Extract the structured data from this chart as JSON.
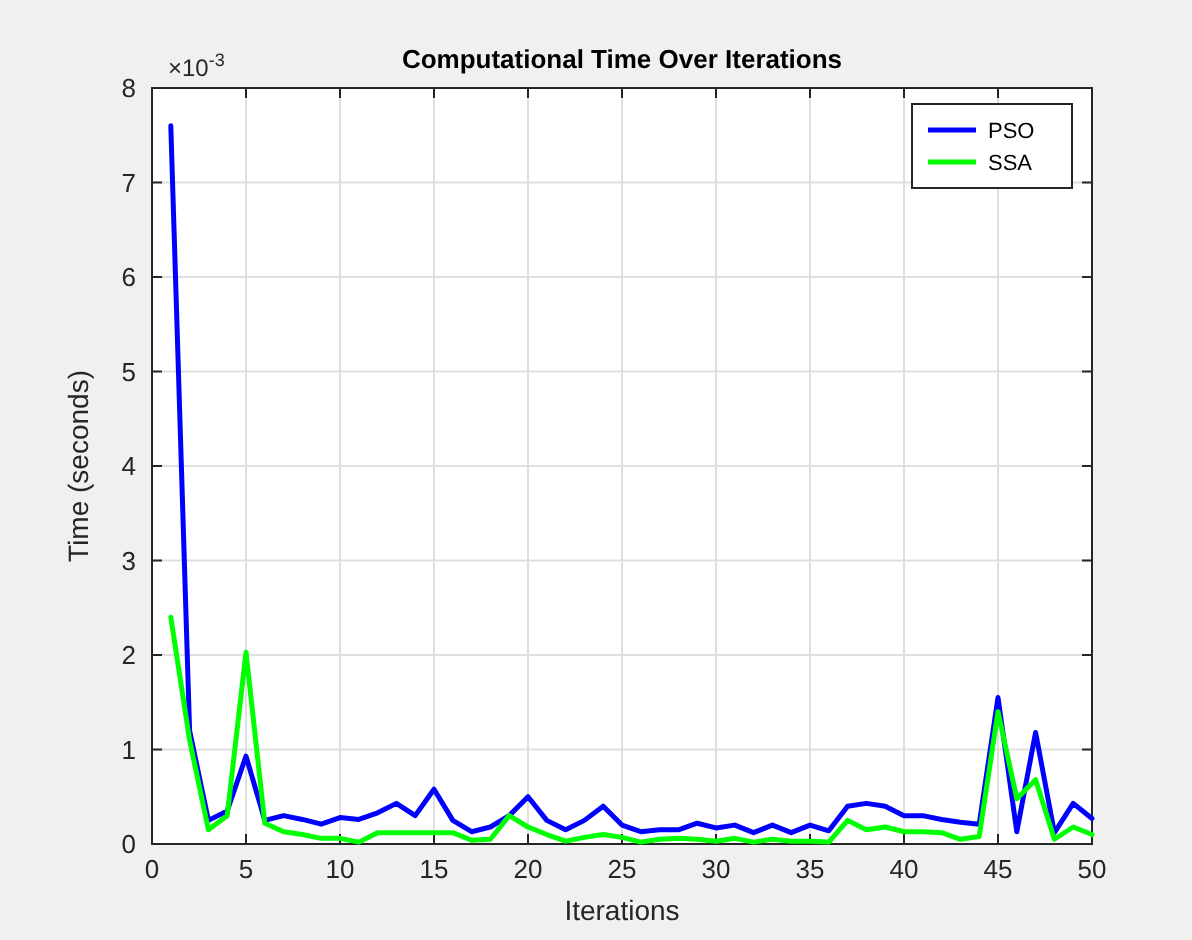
{
  "chart_data": {
    "type": "line",
    "title": "Computational Time Over Iterations",
    "xlabel": "Iterations",
    "ylabel": "Time (seconds)",
    "annotations": [
      "×10$^{-3}$"
    ],
    "x": [
      1,
      2,
      3,
      4,
      5,
      6,
      7,
      8,
      9,
      10,
      11,
      12,
      13,
      14,
      15,
      16,
      17,
      18,
      19,
      20,
      21,
      22,
      23,
      24,
      25,
      26,
      27,
      28,
      29,
      30,
      31,
      32,
      33,
      34,
      35,
      36,
      37,
      38,
      39,
      40,
      41,
      42,
      43,
      44,
      45,
      46,
      47,
      48,
      49,
      50
    ],
    "series": [
      {
        "name": "PSO",
        "color": "#0000ff",
        "values": [
          7.6,
          1.2,
          0.25,
          0.35,
          0.93,
          0.25,
          0.3,
          0.26,
          0.21,
          0.28,
          0.26,
          0.33,
          0.43,
          0.3,
          0.58,
          0.25,
          0.13,
          0.18,
          0.3,
          0.5,
          0.25,
          0.15,
          0.25,
          0.4,
          0.2,
          0.13,
          0.15,
          0.15,
          0.22,
          0.17,
          0.2,
          0.12,
          0.2,
          0.12,
          0.2,
          0.14,
          0.4,
          0.43,
          0.4,
          0.3,
          0.3,
          0.26,
          0.23,
          0.21,
          1.55,
          0.13,
          1.18,
          0.12,
          0.43,
          0.27
        ]
      },
      {
        "name": "SSA",
        "color": "#00ff00",
        "values": [
          2.4,
          1.1,
          0.15,
          0.3,
          2.03,
          0.22,
          0.13,
          0.1,
          0.06,
          0.06,
          0.02,
          0.12,
          0.12,
          0.12,
          0.12,
          0.12,
          0.04,
          0.05,
          0.3,
          0.18,
          0.1,
          0.03,
          0.07,
          0.1,
          0.07,
          0.02,
          0.05,
          0.06,
          0.05,
          0.03,
          0.06,
          0.02,
          0.05,
          0.03,
          0.03,
          0.02,
          0.25,
          0.15,
          0.18,
          0.13,
          0.13,
          0.12,
          0.05,
          0.08,
          1.4,
          0.48,
          0.68,
          0.05,
          0.18,
          0.1
        ]
      }
    ],
    "xlim": [
      0,
      50
    ],
    "xticks": [
      0,
      5,
      10,
      15,
      20,
      25,
      30,
      35,
      40,
      45,
      50
    ],
    "ylim": [
      0,
      8
    ],
    "yticks": [
      0,
      1,
      2,
      3,
      4,
      5,
      6,
      7,
      8
    ],
    "grid": true,
    "legend": "top right",
    "line_style": "solid"
  }
}
